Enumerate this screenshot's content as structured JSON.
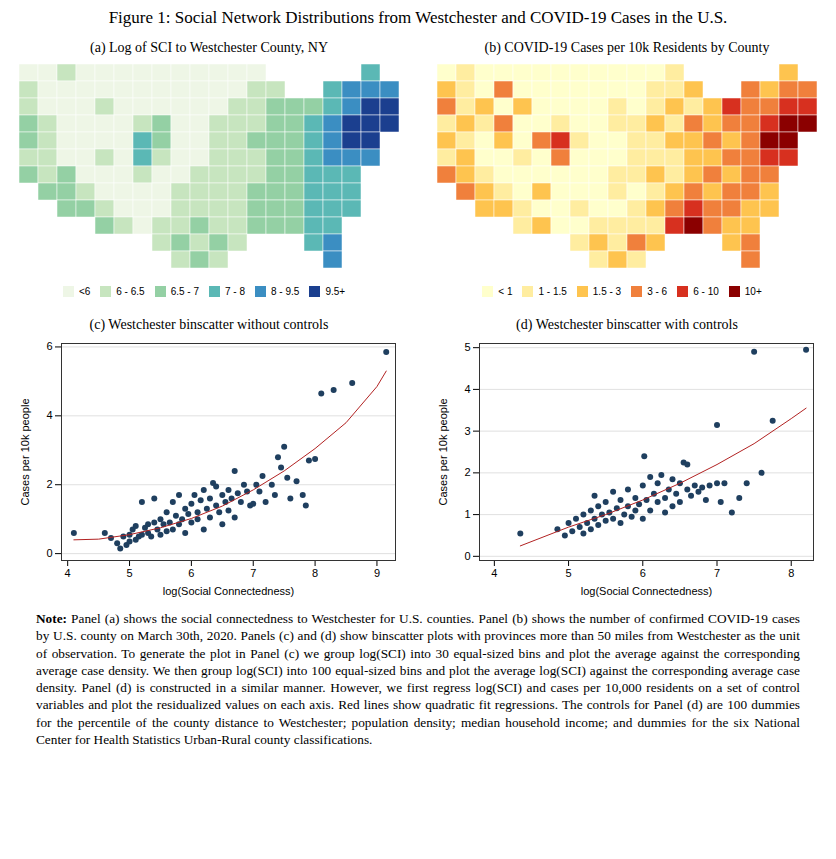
{
  "title": "Figure 1: Social Network Distributions from Westchester and COVID-19 Cases in the U.S.",
  "note_label": "Note:",
  "note": "Panel (a) shows the social connectedness to Westchester for U.S. counties. Panel (b) shows the number of confirmed COVID-19 cases by U.S. county on March 30th, 2020. Panels (c) and (d) show binscatter plots with provinces more than 50 miles from Westchester as the unit of observation. To generate the plot in Panel (c) we group log(SCI) into 30 equal-sized bins and plot the average against the corresponding average case density. We then group log(SCI) into 100 equal-sized bins and plot the average log(SCI) against the corresponding average case density. Panel (d) is constructed in a similar manner. However, we first regress log(SCI) and cases per 10,000 residents on a set of control variables and plot the residualized values on each axis. Red lines show quadratic fit regressions. The controls for Panel (d) are 100 dummies for the percentile of the county distance to Westchester; population density; median household income; and dummies for the six National Center for Health Statistics Urban-Rural county classifications.",
  "chart_data": [
    {
      "type": "heatmap",
      "title": "(a) Log of SCI to Westchester County, NY",
      "tick_labels": false,
      "legend": "bottom",
      "legend_labels": [
        "<6",
        "6 - 6.5",
        "6.5 - 7",
        "7 - 8",
        "8 - 9.5",
        "9.5+"
      ],
      "colors": [
        "#eef6e6",
        "#c7e5bf",
        "#94d0a4",
        "#5bb8b5",
        "#3b8ec2",
        "#1b3f8f"
      ],
      "cells": [
        [
          0,
          0,
          1,
          0,
          0,
          0,
          0,
          0,
          0,
          0,
          0,
          0,
          0,
          null,
          null,
          null,
          null,
          null,
          3,
          null
        ],
        [
          1,
          0,
          0,
          0,
          0,
          0,
          0,
          0,
          0,
          0,
          0,
          0,
          1,
          1,
          null,
          null,
          3,
          4,
          4,
          4
        ],
        [
          1,
          0,
          0,
          0,
          1,
          0,
          0,
          0,
          0,
          0,
          0,
          1,
          1,
          2,
          2,
          2,
          3,
          4,
          5,
          5
        ],
        [
          2,
          1,
          0,
          0,
          0,
          0,
          1,
          2,
          0,
          0,
          1,
          1,
          1,
          2,
          2,
          3,
          4,
          5,
          5,
          5
        ],
        [
          2,
          1,
          0,
          0,
          0,
          0,
          3,
          2,
          0,
          0,
          1,
          1,
          2,
          2,
          2,
          3,
          4,
          5,
          5,
          null
        ],
        [
          1,
          1,
          0,
          0,
          1,
          0,
          3,
          1,
          0,
          0,
          1,
          1,
          1,
          2,
          2,
          3,
          4,
          4,
          4,
          null
        ],
        [
          2,
          1,
          2,
          0,
          0,
          0,
          1,
          0,
          0,
          1,
          1,
          1,
          1,
          2,
          2,
          3,
          3,
          3,
          null,
          null
        ],
        [
          null,
          2,
          2,
          1,
          0,
          0,
          0,
          0,
          1,
          1,
          1,
          1,
          2,
          2,
          2,
          3,
          3,
          3,
          null,
          null
        ],
        [
          null,
          null,
          2,
          2,
          1,
          0,
          0,
          0,
          1,
          1,
          1,
          1,
          2,
          2,
          2,
          3,
          3,
          3,
          null,
          null
        ],
        [
          null,
          null,
          null,
          null,
          2,
          1,
          0,
          1,
          1,
          2,
          1,
          1,
          2,
          2,
          2,
          3,
          3,
          null,
          null,
          null
        ],
        [
          null,
          null,
          null,
          null,
          null,
          null,
          null,
          1,
          2,
          1,
          2,
          1,
          null,
          null,
          null,
          3,
          4,
          null,
          null,
          null
        ],
        [
          null,
          null,
          null,
          null,
          null,
          null,
          null,
          null,
          1,
          2,
          1,
          null,
          null,
          null,
          null,
          null,
          4,
          null,
          null,
          null
        ]
      ]
    },
    {
      "type": "heatmap",
      "title": "(b) COVID-19 Cases per 10k Residents by County",
      "tick_labels": false,
      "legend": "bottom",
      "legend_labels": [
        "< 1",
        "1 - 1.5",
        "1.5 - 3",
        "3 - 6",
        "6 - 10",
        "10+"
      ],
      "colors": [
        "#ffffcc",
        "#ffeda0",
        "#fec44f",
        "#f0803c",
        "#d7301f",
        "#8b0000"
      ],
      "cells": [
        [
          0,
          1,
          0,
          0,
          0,
          0,
          0,
          0,
          0,
          0,
          0,
          0,
          1,
          null,
          null,
          null,
          null,
          null,
          2,
          null
        ],
        [
          2,
          1,
          0,
          3,
          0,
          0,
          0,
          0,
          0,
          0,
          0,
          1,
          1,
          2,
          null,
          null,
          3,
          2,
          3,
          3
        ],
        [
          3,
          1,
          2,
          0,
          2,
          0,
          0,
          0,
          0,
          1,
          0,
          1,
          2,
          1,
          2,
          4,
          3,
          3,
          4,
          4
        ],
        [
          1,
          2,
          1,
          3,
          0,
          0,
          1,
          0,
          0,
          1,
          1,
          2,
          1,
          3,
          2,
          3,
          3,
          4,
          5,
          5
        ],
        [
          2,
          1,
          0,
          2,
          0,
          3,
          4,
          1,
          0,
          0,
          1,
          1,
          2,
          2,
          3,
          2,
          3,
          5,
          5,
          null
        ],
        [
          1,
          2,
          0,
          0,
          1,
          0,
          3,
          0,
          0,
          0,
          1,
          1,
          1,
          2,
          2,
          3,
          3,
          4,
          4,
          null
        ],
        [
          3,
          2,
          1,
          0,
          0,
          0,
          0,
          0,
          0,
          1,
          1,
          2,
          1,
          2,
          3,
          2,
          3,
          3,
          null,
          null
        ],
        [
          null,
          3,
          2,
          1,
          0,
          2,
          0,
          0,
          0,
          1,
          0,
          1,
          2,
          3,
          2,
          3,
          3,
          2,
          null,
          null
        ],
        [
          null,
          null,
          2,
          2,
          1,
          0,
          0,
          1,
          0,
          0,
          1,
          2,
          3,
          4,
          3,
          3,
          2,
          2,
          null,
          null
        ],
        [
          null,
          null,
          null,
          null,
          1,
          2,
          0,
          0,
          1,
          1,
          1,
          1,
          4,
          5,
          3,
          2,
          2,
          null,
          null,
          null
        ],
        [
          null,
          null,
          null,
          null,
          null,
          null,
          null,
          1,
          2,
          1,
          3,
          2,
          null,
          null,
          null,
          2,
          3,
          null,
          null,
          null
        ],
        [
          null,
          null,
          null,
          null,
          null,
          null,
          null,
          null,
          1,
          2,
          1,
          null,
          null,
          null,
          null,
          null,
          3,
          null,
          null,
          null
        ]
      ]
    },
    {
      "type": "scatter",
      "title": "(c) Westchester binscatter without controls",
      "x_label": "log(Social Connectedness)",
      "y_label": "Cases per 10k people",
      "xlim": [
        3.9,
        9.3
      ],
      "xticks": [
        4,
        5,
        6,
        7,
        8,
        9
      ],
      "ylim": [
        -0.2,
        6.1
      ],
      "yticks": [
        0,
        2,
        4,
        6
      ],
      "grid": true,
      "series": [
        {
          "type": "scatter",
          "marker": "circle",
          "color": "#1f3f5f",
          "x": [
            4.1,
            4.6,
            4.7,
            4.8,
            4.85,
            4.9,
            4.95,
            5.0,
            5.0,
            5.05,
            5.1,
            5.1,
            5.15,
            5.2,
            5.2,
            5.25,
            5.3,
            5.3,
            5.35,
            5.4,
            5.4,
            5.45,
            5.5,
            5.5,
            5.55,
            5.6,
            5.6,
            5.65,
            5.7,
            5.7,
            5.75,
            5.8,
            5.8,
            5.85,
            5.9,
            5.9,
            5.95,
            6.0,
            6.0,
            6.05,
            6.1,
            6.1,
            6.15,
            6.2,
            6.2,
            6.25,
            6.3,
            6.3,
            6.35,
            6.4,
            6.4,
            6.45,
            6.5,
            6.5,
            6.55,
            6.6,
            6.6,
            6.65,
            6.7,
            6.7,
            6.75,
            6.8,
            6.85,
            6.9,
            6.95,
            7.0,
            7.05,
            7.1,
            7.15,
            7.2,
            7.3,
            7.35,
            7.4,
            7.45,
            7.5,
            7.55,
            7.6,
            7.7,
            7.8,
            7.85,
            7.9,
            8.0,
            8.1,
            8.3,
            8.6,
            9.15
          ],
          "y": [
            0.6,
            0.6,
            0.45,
            0.3,
            0.15,
            0.5,
            0.25,
            0.35,
            0.55,
            0.7,
            0.4,
            0.8,
            0.5,
            0.55,
            1.5,
            0.75,
            0.6,
            0.85,
            0.5,
            1.6,
            0.9,
            0.7,
            0.55,
            1.0,
            0.85,
            0.65,
            1.2,
            0.9,
            1.5,
            0.7,
            1.1,
            1.7,
            0.85,
            1.0,
            1.3,
            0.6,
            1.15,
            1.45,
            0.9,
            1.7,
            1.2,
            1.0,
            1.55,
            0.7,
            1.85,
            1.3,
            1.6,
            1.05,
            2.05,
            1.4,
            1.95,
            1.2,
            1.7,
            0.85,
            1.5,
            1.85,
            1.25,
            1.6,
            2.4,
            1.05,
            1.75,
            1.5,
            2.0,
            1.8,
            1.4,
            1.45,
            2.0,
            1.8,
            2.25,
            1.5,
            2.0,
            1.7,
            2.8,
            2.5,
            3.1,
            2.2,
            1.6,
            2.1,
            1.7,
            1.4,
            2.7,
            2.75,
            4.65,
            4.75,
            4.95,
            5.85
          ]
        },
        {
          "type": "line",
          "line_style": "solid",
          "color": "#b22222",
          "x": [
            4.1,
            4.5,
            5.0,
            5.5,
            6.0,
            6.5,
            7.0,
            7.5,
            8.0,
            8.5,
            9.0,
            9.15
          ],
          "y": [
            0.4,
            0.42,
            0.55,
            0.75,
            1.02,
            1.38,
            1.85,
            2.4,
            3.05,
            3.8,
            4.85,
            5.3
          ]
        }
      ]
    },
    {
      "type": "scatter",
      "title": "(d) Westchester binscatter with controls",
      "x_label": "log(Social Connectedness)",
      "y_label": "Cases per 10k people",
      "xlim": [
        3.8,
        8.3
      ],
      "xticks": [
        4,
        5,
        6,
        7,
        8
      ],
      "ylim": [
        -0.1,
        5.1
      ],
      "yticks": [
        0,
        1,
        2,
        3,
        4,
        5
      ],
      "grid": true,
      "series": [
        {
          "type": "scatter",
          "marker": "circle",
          "color": "#1f3f5f",
          "x": [
            4.35,
            4.85,
            4.95,
            5.0,
            5.05,
            5.1,
            5.15,
            5.2,
            5.2,
            5.25,
            5.3,
            5.3,
            5.35,
            5.35,
            5.4,
            5.4,
            5.45,
            5.5,
            5.5,
            5.55,
            5.6,
            5.6,
            5.65,
            5.7,
            5.7,
            5.75,
            5.8,
            5.8,
            5.85,
            5.9,
            5.9,
            5.95,
            6.0,
            6.0,
            6.02,
            6.05,
            6.1,
            6.1,
            6.15,
            6.2,
            6.2,
            6.25,
            6.3,
            6.3,
            6.35,
            6.4,
            6.4,
            6.45,
            6.5,
            6.5,
            6.55,
            6.6,
            6.6,
            6.65,
            6.7,
            6.75,
            6.8,
            6.85,
            6.9,
            7.0,
            7.0,
            7.05,
            7.1,
            7.2,
            7.3,
            7.4,
            7.5,
            7.6,
            7.75,
            8.2
          ],
          "y": [
            0.55,
            0.65,
            0.5,
            0.8,
            0.6,
            0.9,
            0.7,
            0.55,
            1.0,
            0.8,
            1.1,
            0.65,
            0.9,
            1.45,
            0.75,
            1.2,
            1.0,
            0.85,
            1.3,
            1.05,
            0.9,
            1.55,
            1.15,
            0.8,
            1.35,
            1.0,
            1.6,
            1.2,
            0.95,
            1.4,
            1.1,
            1.25,
            1.7,
            0.9,
            2.4,
            1.35,
            1.9,
            1.1,
            1.5,
            1.75,
            1.3,
            1.95,
            1.4,
            1.05,
            1.6,
            1.85,
            1.2,
            1.5,
            1.75,
            1.3,
            2.25,
            1.6,
            2.2,
            1.45,
            1.7,
            1.55,
            1.65,
            1.35,
            1.7,
            3.15,
            1.75,
            1.3,
            1.75,
            1.05,
            1.4,
            1.75,
            4.9,
            2.0,
            3.25,
            4.95
          ]
        },
        {
          "type": "line",
          "line_style": "solid",
          "color": "#b22222",
          "x": [
            4.35,
            5.0,
            5.5,
            6.0,
            6.5,
            7.0,
            7.5,
            8.0,
            8.2
          ],
          "y": [
            0.25,
            0.7,
            1.0,
            1.35,
            1.75,
            2.2,
            2.7,
            3.3,
            3.55
          ]
        }
      ]
    }
  ]
}
